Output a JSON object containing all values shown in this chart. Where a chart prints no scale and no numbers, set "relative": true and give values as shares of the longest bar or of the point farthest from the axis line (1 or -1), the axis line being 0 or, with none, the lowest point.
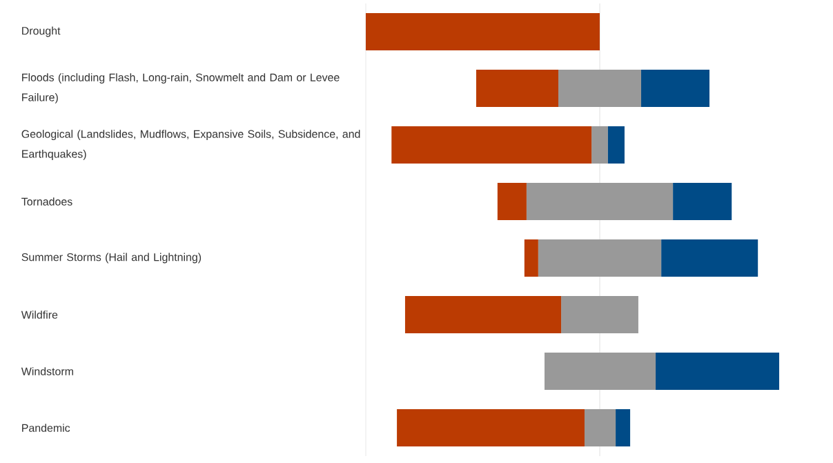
{
  "chart_data": {
    "type": "bar",
    "orientation": "horizontal",
    "stacked": true,
    "relative": true,
    "categories": [
      "Drought",
      "Floods (including Flash, Long-rain, Snowmelt and Dam or Levee Failure)",
      "Geological (Landslides, Mudflows, Expansive Soils, Subsidence, and Earthquakes)",
      "Tornadoes",
      "Summer Storms (Hail and Lightning)",
      "Wildfire",
      "Windstorm",
      "Pandemic"
    ],
    "series": [
      {
        "color": "#999999",
        "values": [
          null,
          -0.177,
          -0.035,
          -0.313,
          -0.263,
          -0.165,
          -0.236,
          -0.065
        ]
      },
      {
        "color": "#bb3b02",
        "values": [
          -1.0,
          -0.351,
          -0.855,
          -0.124,
          -0.059,
          -0.667,
          null,
          -0.802
        ]
      },
      {
        "color": "#999999",
        "values": [
          null,
          0.177,
          0.035,
          0.313,
          0.263,
          0.165,
          0.239,
          0.068
        ]
      },
      {
        "color": "#004b87",
        "values": [
          null,
          0.292,
          0.071,
          0.251,
          0.413,
          null,
          0.528,
          0.062
        ]
      }
    ]
  }
}
